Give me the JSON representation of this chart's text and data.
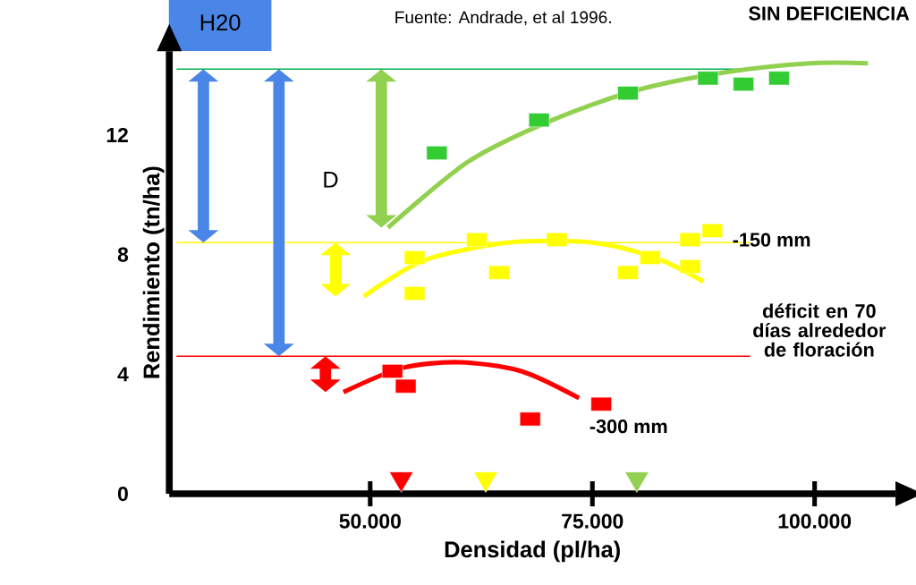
{
  "chart_data": {
    "type": "scatter",
    "xlabel": "Densidad (pl/ha)",
    "ylabel": "Rendimiento (tn/ha)",
    "xlim": [
      27400,
      109100
    ],
    "ylim": [
      0,
      14.8
    ],
    "xticks": [
      {
        "value": 50000,
        "label": "50.000"
      },
      {
        "value": 75000,
        "label": "75.000"
      },
      {
        "value": 100000,
        "label": "100.000"
      }
    ],
    "yticks": [
      0,
      4,
      8,
      12
    ],
    "marker": "square",
    "grid": false,
    "series": [
      {
        "name": "SIN DEFICIENCIA",
        "color": "#33cc33",
        "x": [
          57500,
          69000,
          79000,
          88000,
          92000,
          96000
        ],
        "values": [
          11.4,
          12.5,
          13.4,
          13.9,
          13.7,
          13.9
        ]
      },
      {
        "type": "line",
        "marker": "none",
        "color": "#92d050",
        "x": [
          52000,
          61000,
          70500,
          80000,
          90000,
          99500,
          106000
        ],
        "values": [
          8.9,
          11.1,
          12.5,
          13.5,
          14.1,
          14.4,
          14.4
        ]
      },
      {
        "name": "-150 mm",
        "color": "#ffff00",
        "x": [
          55000,
          55000,
          62000,
          64500,
          71000,
          79000,
          81500,
          86000,
          86000,
          88500
        ],
        "values": [
          7.9,
          6.7,
          8.5,
          7.4,
          8.5,
          7.4,
          7.9,
          8.5,
          7.6,
          8.8
        ]
      },
      {
        "type": "line",
        "marker": "none",
        "color": "#ffff00",
        "x": [
          49300,
          56000,
          65500,
          75000,
          82000,
          87500
        ],
        "values": [
          6.6,
          7.8,
          8.4,
          8.4,
          7.9,
          7.1
        ]
      },
      {
        "name": "-300 mm",
        "color": "#ff0000",
        "x": [
          52500,
          54000,
          68000,
          76000
        ],
        "values": [
          4.1,
          3.6,
          2.5,
          3.0
        ]
      },
      {
        "type": "line",
        "marker": "none",
        "color": "#ff0000",
        "x": [
          47000,
          53500,
          60000,
          67000,
          73500
        ],
        "values": [
          3.4,
          4.2,
          4.4,
          4.1,
          3.2
        ]
      },
      {
        "marker": "triangle",
        "color": "#ff0000",
        "x": [
          53500
        ],
        "values": [
          0.5
        ]
      },
      {
        "marker": "triangle",
        "color": "#ffff00",
        "x": [
          63000
        ],
        "values": [
          0.5
        ]
      },
      {
        "marker": "triangle",
        "color": "#92d050",
        "x": [
          80000
        ],
        "values": [
          0.5
        ]
      }
    ],
    "ref_lines": [
      {
        "axis": "y",
        "value": 14.2,
        "color": "#00b050"
      },
      {
        "axis": "y",
        "value": 8.4,
        "color": "#ffff00"
      },
      {
        "axis": "y",
        "value": 4.6,
        "color": "#ff0000"
      }
    ],
    "annotations": [
      "Fuente: Andrade, et al 1996.",
      "H20",
      "D",
      "déficit en 70 días alrededor de floración"
    ]
  }
}
